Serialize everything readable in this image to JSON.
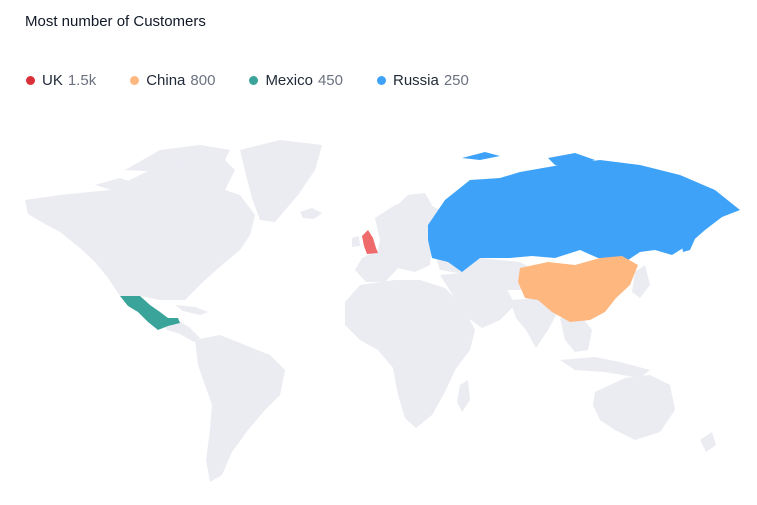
{
  "title": "Most number of Customers",
  "legend": [
    {
      "name": "UK",
      "value": "1.5k",
      "color": "#d9303a"
    },
    {
      "name": "China",
      "value": "800",
      "color": "#fdb77f"
    },
    {
      "name": "Mexico",
      "value": "450",
      "color": "#3aa39a"
    },
    {
      "name": "Russia",
      "value": "250",
      "color": "#3ea3f8"
    }
  ],
  "map": {
    "base_color": "#ebebf2",
    "highlight_colors": {
      "uk": "#ef6a6a",
      "china": "#fdb77f",
      "mexico": "#3aa39a",
      "russia": "#3ea3f8"
    }
  }
}
